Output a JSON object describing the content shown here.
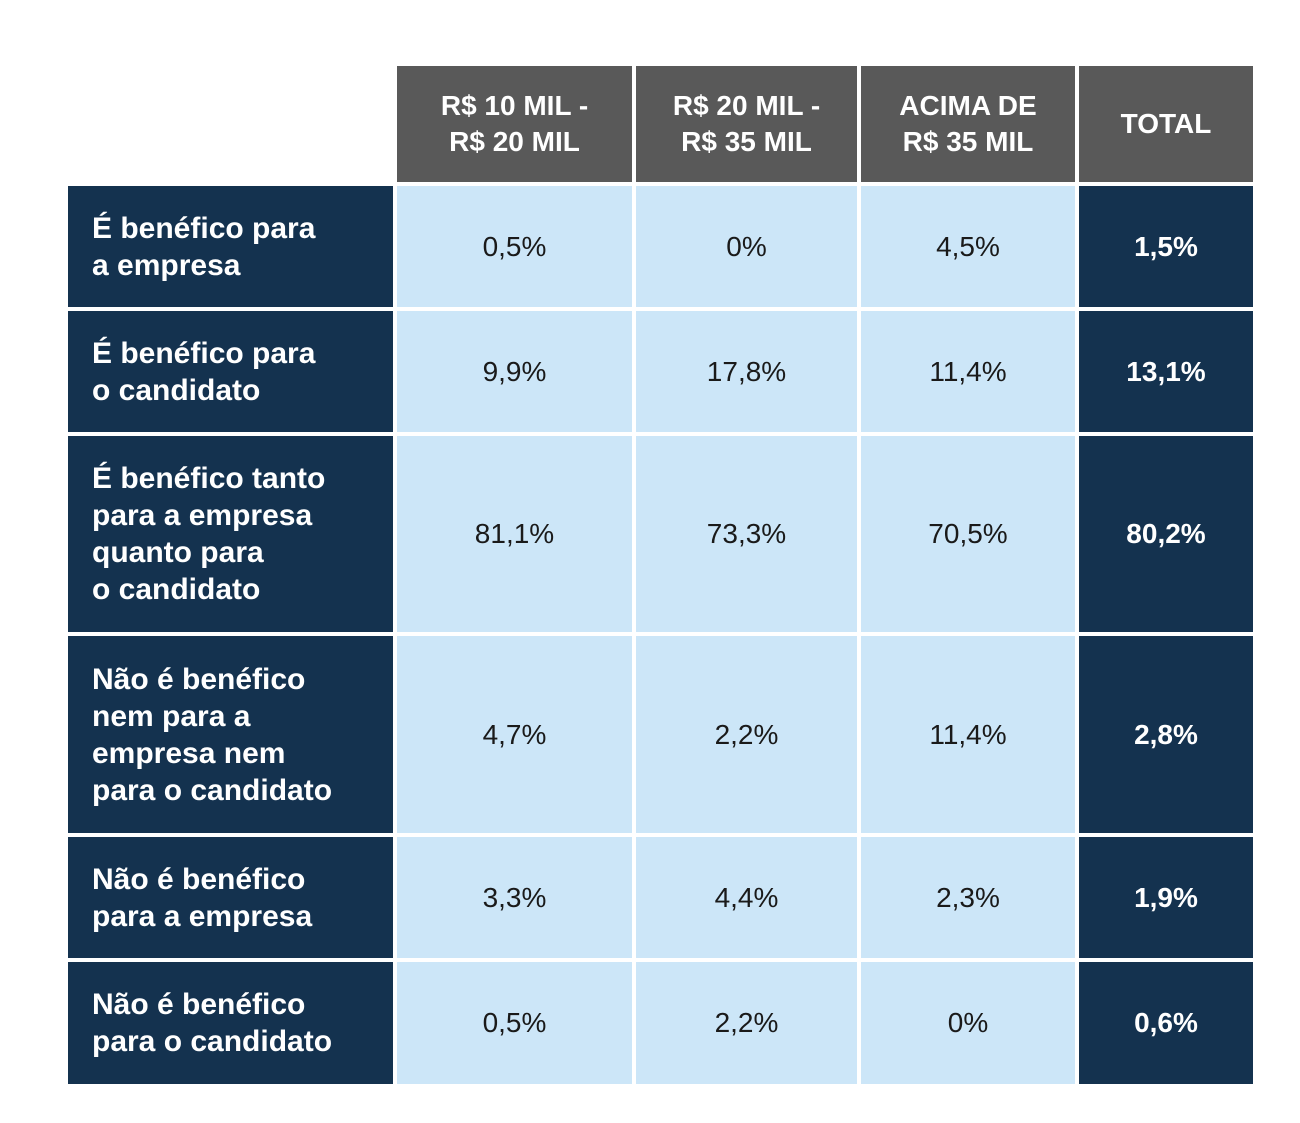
{
  "table": {
    "header": [
      [
        "R$ 10 MIL -",
        "R$ 20 MIL"
      ],
      [
        "R$ 20 MIL -",
        "R$ 35 MIL"
      ],
      [
        "ACIMA DE",
        "R$ 35 MIL"
      ],
      [
        "TOTAL"
      ]
    ],
    "rows": [
      {
        "label": [
          "É benéfico para",
          "a empresa"
        ],
        "values": [
          "0,5%",
          "0%",
          "4,5%",
          "1,5%"
        ]
      },
      {
        "label": [
          "É benéfico para",
          "o candidato"
        ],
        "values": [
          "9,9%",
          "17,8%",
          "11,4%",
          "13,1%"
        ]
      },
      {
        "label": [
          "É benéfico tanto",
          "para a empresa",
          "quanto para",
          "o candidato"
        ],
        "values": [
          "81,1%",
          "73,3%",
          "70,5%",
          "80,2%"
        ]
      },
      {
        "label": [
          "Não é benéfico",
          "nem para a",
          "empresa nem",
          "para o candidato"
        ],
        "values": [
          "4,7%",
          "2,2%",
          "11,4%",
          "2,8%"
        ]
      },
      {
        "label": [
          "Não é benéfico",
          "para a empresa"
        ],
        "values": [
          "3,3%",
          "4,4%",
          "2,3%",
          "1,9%"
        ]
      },
      {
        "label": [
          "Não é benéfico",
          "para o candidato"
        ],
        "values": [
          "0,5%",
          "2,2%",
          "0%",
          "0,6%"
        ]
      }
    ]
  }
}
